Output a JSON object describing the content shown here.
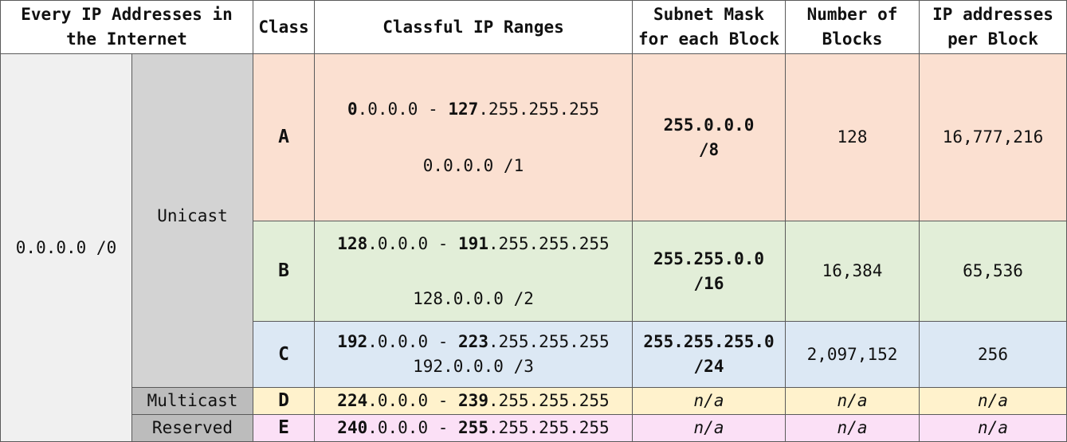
{
  "headers": {
    "all": "Every IP Addresses in the Internet",
    "class": "Class",
    "ranges": "Classful IP Ranges",
    "mask": "Subnet Mask for each Block",
    "blocks": "Number of Blocks",
    "per_block": "IP addresses per Block"
  },
  "all_cidr": "0.0.0.0 /0",
  "unicast_label": "Unicast",
  "rows": [
    {
      "class": "A",
      "range_start_bold": "0",
      "range_start_rest": ".0.0.0",
      "sep": " - ",
      "range_end_bold": "127",
      "range_end_rest": ".255.255.255",
      "cidr": "0.0.0.0 /1",
      "mask_a": "255.0.0.0",
      "mask_b": "/8",
      "blocks": "128",
      "per_block": "16,777,216",
      "color": "#fbe0d1"
    },
    {
      "class": "B",
      "range_start_bold": "128",
      "range_start_rest": ".0.0.0",
      "sep": " - ",
      "range_end_bold": "191",
      "range_end_rest": ".255.255.255",
      "cidr": "128.0.0.0 /2",
      "mask_a": "255.255.0.0",
      "mask_b": "/16",
      "blocks": "16,384",
      "per_block": "65,536",
      "color": "#e2eed8"
    },
    {
      "class": "C",
      "range_start_bold": "192",
      "range_start_rest": ".0.0.0",
      "sep": " - ",
      "range_end_bold": "223",
      "range_end_rest": ".255.255.255",
      "cidr": "192.0.0.0 /3",
      "mask_a": "255.255.255.0",
      "mask_b": "/24",
      "blocks": "2,097,152",
      "per_block": "256",
      "color": "#dce8f4"
    },
    {
      "type_label": "Multicast",
      "class": "D",
      "range_start_bold": "224",
      "range_start_rest": ".0.0.0",
      "sep": " - ",
      "range_end_bold": "239",
      "range_end_rest": ".255.255.255",
      "mask": "n/a",
      "blocks": "n/a",
      "per_block": "n/a",
      "color": "#fff2cc"
    },
    {
      "type_label": "Reserved",
      "class": "E",
      "range_start_bold": "240",
      "range_start_rest": ".0.0.0",
      "sep": " - ",
      "range_end_bold": "255",
      "range_end_rest": ".255.255.255",
      "mask": "n/a",
      "blocks": "n/a",
      "per_block": "n/a",
      "color": "#fbe0f6"
    }
  ]
}
